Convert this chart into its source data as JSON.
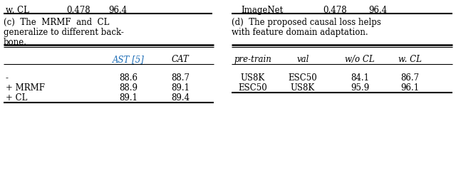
{
  "caption_c_line1": "(c)  The  MRMF  and  CL",
  "caption_c_line2": "generalize to different back-",
  "caption_c_line3": "bone.",
  "caption_d_line1": "(d)  The proposed causal loss helps",
  "caption_d_line2": "with feature domain adaptation.",
  "table_c_header_col1": "AST [5]",
  "table_c_header_col2": "CAT",
  "table_c_header_color": "#1a6bb5",
  "table_c_rows": [
    [
      "-",
      "88.6",
      "88.7"
    ],
    [
      "+ MRMF",
      "88.9",
      "89.1"
    ],
    [
      "+ CL",
      "89.1",
      "89.4"
    ]
  ],
  "table_d_headers": [
    "pre-train",
    "val",
    "w/o CL",
    "w. CL"
  ],
  "table_d_rows": [
    [
      "US8K",
      "ESC50",
      "84.1",
      "86.7"
    ],
    [
      "ESC50",
      "US8K",
      "95.9",
      "96.1"
    ]
  ],
  "top_left": [
    "w. CL",
    "0.478",
    "96.4"
  ],
  "top_right": [
    "ImageNet",
    "0.478",
    "96.4"
  ],
  "bg_color": "#ffffff",
  "text_color": "#000000",
  "font_size": 8.5,
  "font_family": "DejaVu Serif"
}
